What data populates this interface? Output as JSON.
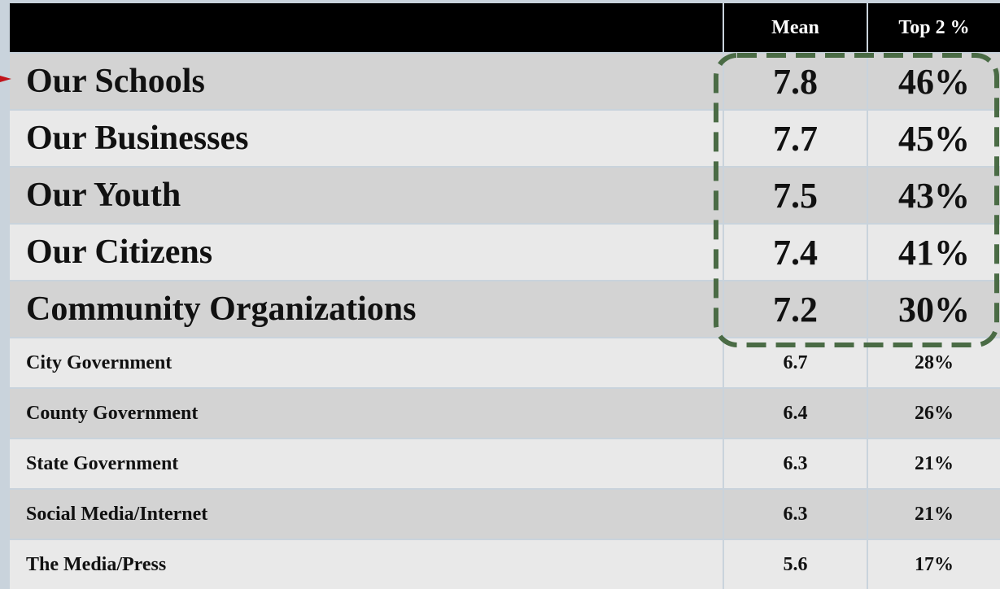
{
  "header": {
    "mean": "Mean",
    "top": "Top 2 %"
  },
  "rows": [
    {
      "label": "Our Schools",
      "mean": "7.8",
      "top": "46%"
    },
    {
      "label": "Our Businesses",
      "mean": "7.7",
      "top": "45%"
    },
    {
      "label": "Our Youth",
      "mean": "7.5",
      "top": "43%"
    },
    {
      "label": "Our Citizens",
      "mean": "7.4",
      "top": "41%"
    },
    {
      "label": "Community Organizations",
      "mean": "7.2",
      "top": "30%"
    },
    {
      "label": "City Government",
      "mean": "6.7",
      "top": "28%"
    },
    {
      "label": "County Government",
      "mean": "6.4",
      "top": "26%"
    },
    {
      "label": "State Government",
      "mean": "6.3",
      "top": "21%"
    },
    {
      "label": "Social Media/Internet",
      "mean": "6.3",
      "top": "21%"
    },
    {
      "label": "The Media/Press",
      "mean": "5.6",
      "top": "17%"
    }
  ]
}
